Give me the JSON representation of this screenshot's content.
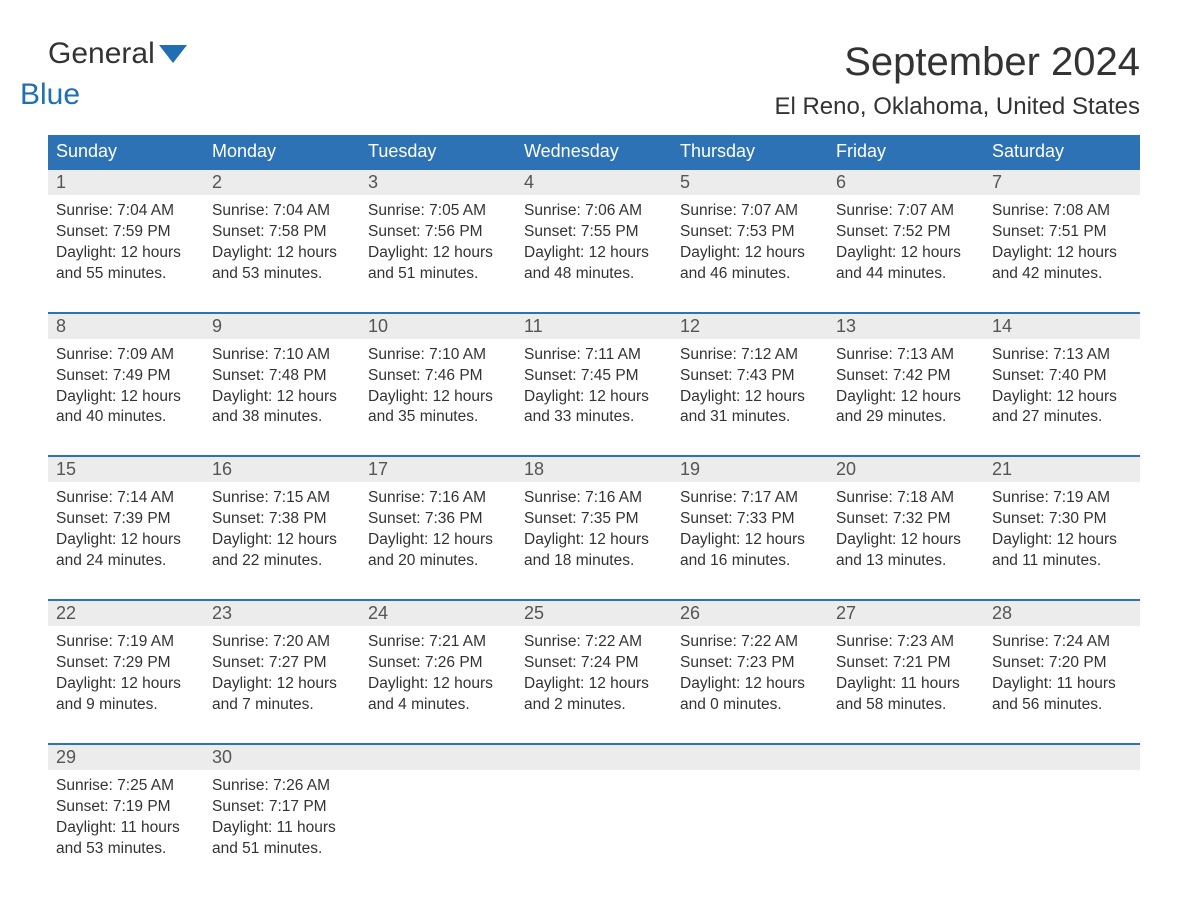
{
  "logo": {
    "part1": "General",
    "part2": "Blue",
    "color1": "#333333",
    "color2": "#1f6fb2"
  },
  "title": "September 2024",
  "location": "El Reno, Oklahoma, United States",
  "colors": {
    "header_bg": "#2d72b5",
    "header_text": "#ffffff",
    "daynum_bg": "#ececec",
    "daynum_border": "#2d72b5",
    "body_text": "#333333",
    "background": "#ffffff"
  },
  "typography": {
    "title_fontsize": 40,
    "location_fontsize": 24,
    "dow_fontsize": 18,
    "daynum_fontsize": 18,
    "cell_fontsize": 15.5,
    "font_family": "Arial"
  },
  "days_of_week": [
    "Sunday",
    "Monday",
    "Tuesday",
    "Wednesday",
    "Thursday",
    "Friday",
    "Saturday"
  ],
  "weeks": [
    [
      {
        "n": "1",
        "sunrise": "7:04 AM",
        "sunset": "7:59 PM",
        "dl": "12 hours and 55 minutes."
      },
      {
        "n": "2",
        "sunrise": "7:04 AM",
        "sunset": "7:58 PM",
        "dl": "12 hours and 53 minutes."
      },
      {
        "n": "3",
        "sunrise": "7:05 AM",
        "sunset": "7:56 PM",
        "dl": "12 hours and 51 minutes."
      },
      {
        "n": "4",
        "sunrise": "7:06 AM",
        "sunset": "7:55 PM",
        "dl": "12 hours and 48 minutes."
      },
      {
        "n": "5",
        "sunrise": "7:07 AM",
        "sunset": "7:53 PM",
        "dl": "12 hours and 46 minutes."
      },
      {
        "n": "6",
        "sunrise": "7:07 AM",
        "sunset": "7:52 PM",
        "dl": "12 hours and 44 minutes."
      },
      {
        "n": "7",
        "sunrise": "7:08 AM",
        "sunset": "7:51 PM",
        "dl": "12 hours and 42 minutes."
      }
    ],
    [
      {
        "n": "8",
        "sunrise": "7:09 AM",
        "sunset": "7:49 PM",
        "dl": "12 hours and 40 minutes."
      },
      {
        "n": "9",
        "sunrise": "7:10 AM",
        "sunset": "7:48 PM",
        "dl": "12 hours and 38 minutes."
      },
      {
        "n": "10",
        "sunrise": "7:10 AM",
        "sunset": "7:46 PM",
        "dl": "12 hours and 35 minutes."
      },
      {
        "n": "11",
        "sunrise": "7:11 AM",
        "sunset": "7:45 PM",
        "dl": "12 hours and 33 minutes."
      },
      {
        "n": "12",
        "sunrise": "7:12 AM",
        "sunset": "7:43 PM",
        "dl": "12 hours and 31 minutes."
      },
      {
        "n": "13",
        "sunrise": "7:13 AM",
        "sunset": "7:42 PM",
        "dl": "12 hours and 29 minutes."
      },
      {
        "n": "14",
        "sunrise": "7:13 AM",
        "sunset": "7:40 PM",
        "dl": "12 hours and 27 minutes."
      }
    ],
    [
      {
        "n": "15",
        "sunrise": "7:14 AM",
        "sunset": "7:39 PM",
        "dl": "12 hours and 24 minutes."
      },
      {
        "n": "16",
        "sunrise": "7:15 AM",
        "sunset": "7:38 PM",
        "dl": "12 hours and 22 minutes."
      },
      {
        "n": "17",
        "sunrise": "7:16 AM",
        "sunset": "7:36 PM",
        "dl": "12 hours and 20 minutes."
      },
      {
        "n": "18",
        "sunrise": "7:16 AM",
        "sunset": "7:35 PM",
        "dl": "12 hours and 18 minutes."
      },
      {
        "n": "19",
        "sunrise": "7:17 AM",
        "sunset": "7:33 PM",
        "dl": "12 hours and 16 minutes."
      },
      {
        "n": "20",
        "sunrise": "7:18 AM",
        "sunset": "7:32 PM",
        "dl": "12 hours and 13 minutes."
      },
      {
        "n": "21",
        "sunrise": "7:19 AM",
        "sunset": "7:30 PM",
        "dl": "12 hours and 11 minutes."
      }
    ],
    [
      {
        "n": "22",
        "sunrise": "7:19 AM",
        "sunset": "7:29 PM",
        "dl": "12 hours and 9 minutes."
      },
      {
        "n": "23",
        "sunrise": "7:20 AM",
        "sunset": "7:27 PM",
        "dl": "12 hours and 7 minutes."
      },
      {
        "n": "24",
        "sunrise": "7:21 AM",
        "sunset": "7:26 PM",
        "dl": "12 hours and 4 minutes."
      },
      {
        "n": "25",
        "sunrise": "7:22 AM",
        "sunset": "7:24 PM",
        "dl": "12 hours and 2 minutes."
      },
      {
        "n": "26",
        "sunrise": "7:22 AM",
        "sunset": "7:23 PM",
        "dl": "12 hours and 0 minutes."
      },
      {
        "n": "27",
        "sunrise": "7:23 AM",
        "sunset": "7:21 PM",
        "dl": "11 hours and 58 minutes."
      },
      {
        "n": "28",
        "sunrise": "7:24 AM",
        "sunset": "7:20 PM",
        "dl": "11 hours and 56 minutes."
      }
    ],
    [
      {
        "n": "29",
        "sunrise": "7:25 AM",
        "sunset": "7:19 PM",
        "dl": "11 hours and 53 minutes."
      },
      {
        "n": "30",
        "sunrise": "7:26 AM",
        "sunset": "7:17 PM",
        "dl": "11 hours and 51 minutes."
      },
      null,
      null,
      null,
      null,
      null
    ]
  ],
  "labels": {
    "sunrise": "Sunrise: ",
    "sunset": "Sunset: ",
    "daylight": "Daylight: "
  }
}
